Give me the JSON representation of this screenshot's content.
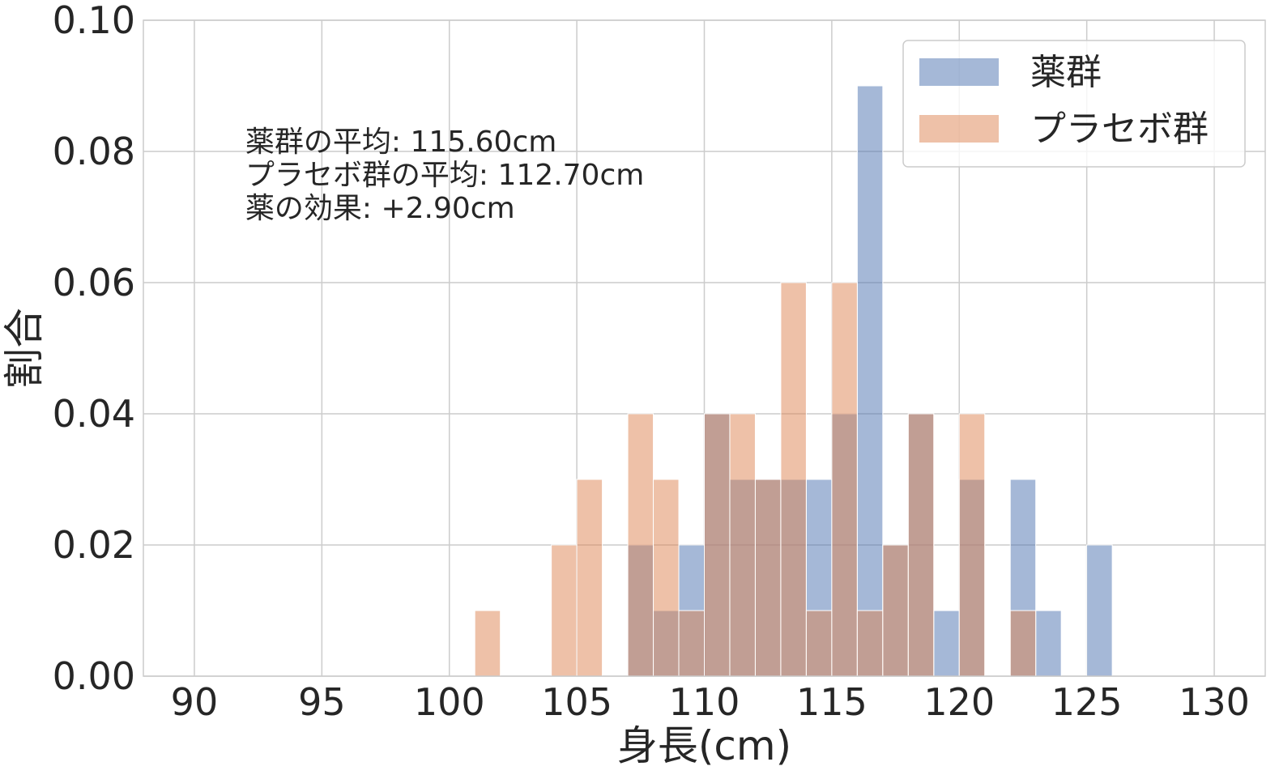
{
  "chart_data": {
    "type": "bar",
    "xlabel": "身長(cm)",
    "ylabel": "割合",
    "xlim": [
      88,
      132
    ],
    "ylim": [
      0,
      0.1
    ],
    "x_ticks": [
      90,
      95,
      100,
      105,
      110,
      115,
      120,
      125,
      130
    ],
    "x_tick_labels": [
      "90",
      "95",
      "100",
      "105",
      "110",
      "115",
      "120",
      "125",
      "130"
    ],
    "y_ticks": [
      0,
      0.02,
      0.04,
      0.06,
      0.08,
      0.1
    ],
    "y_tick_labels": [
      "0.00",
      "0.02",
      "0.04",
      "0.06",
      "0.08",
      "0.10"
    ],
    "grid": true,
    "legend_position": "top-right",
    "bin_width": 1,
    "series": [
      {
        "name": "薬群",
        "color": "#4c72b0",
        "bins": [
          {
            "x": 107,
            "value": 0.02
          },
          {
            "x": 108,
            "value": 0.01
          },
          {
            "x": 109,
            "value": 0.02
          },
          {
            "x": 110,
            "value": 0.04
          },
          {
            "x": 111,
            "value": 0.03
          },
          {
            "x": 112,
            "value": 0.03
          },
          {
            "x": 113,
            "value": 0.03
          },
          {
            "x": 114,
            "value": 0.03
          },
          {
            "x": 115,
            "value": 0.04
          },
          {
            "x": 116,
            "value": 0.09
          },
          {
            "x": 117,
            "value": 0.02
          },
          {
            "x": 118,
            "value": 0.04
          },
          {
            "x": 119,
            "value": 0.01
          },
          {
            "x": 120,
            "value": 0.03
          },
          {
            "x": 122,
            "value": 0.03
          },
          {
            "x": 123,
            "value": 0.01
          },
          {
            "x": 125,
            "value": 0.02
          }
        ]
      },
      {
        "name": "プラセボ群",
        "color": "#dd8452",
        "bins": [
          {
            "x": 101,
            "value": 0.01
          },
          {
            "x": 104,
            "value": 0.02
          },
          {
            "x": 105,
            "value": 0.03
          },
          {
            "x": 107,
            "value": 0.04
          },
          {
            "x": 108,
            "value": 0.03
          },
          {
            "x": 109,
            "value": 0.01
          },
          {
            "x": 110,
            "value": 0.04
          },
          {
            "x": 111,
            "value": 0.04
          },
          {
            "x": 112,
            "value": 0.03
          },
          {
            "x": 113,
            "value": 0.06
          },
          {
            "x": 114,
            "value": 0.01
          },
          {
            "x": 115,
            "value": 0.06
          },
          {
            "x": 116,
            "value": 0.01
          },
          {
            "x": 117,
            "value": 0.02
          },
          {
            "x": 118,
            "value": 0.04
          },
          {
            "x": 120,
            "value": 0.04
          },
          {
            "x": 122,
            "value": 0.01
          }
        ]
      }
    ],
    "annotations": [
      "薬群の平均: 115.60cm",
      "プラセボ群の平均: 112.70cm",
      "薬の効果: +2.90cm"
    ],
    "overlap_color": "#9b9aac",
    "grid_color": "#cccccc"
  }
}
